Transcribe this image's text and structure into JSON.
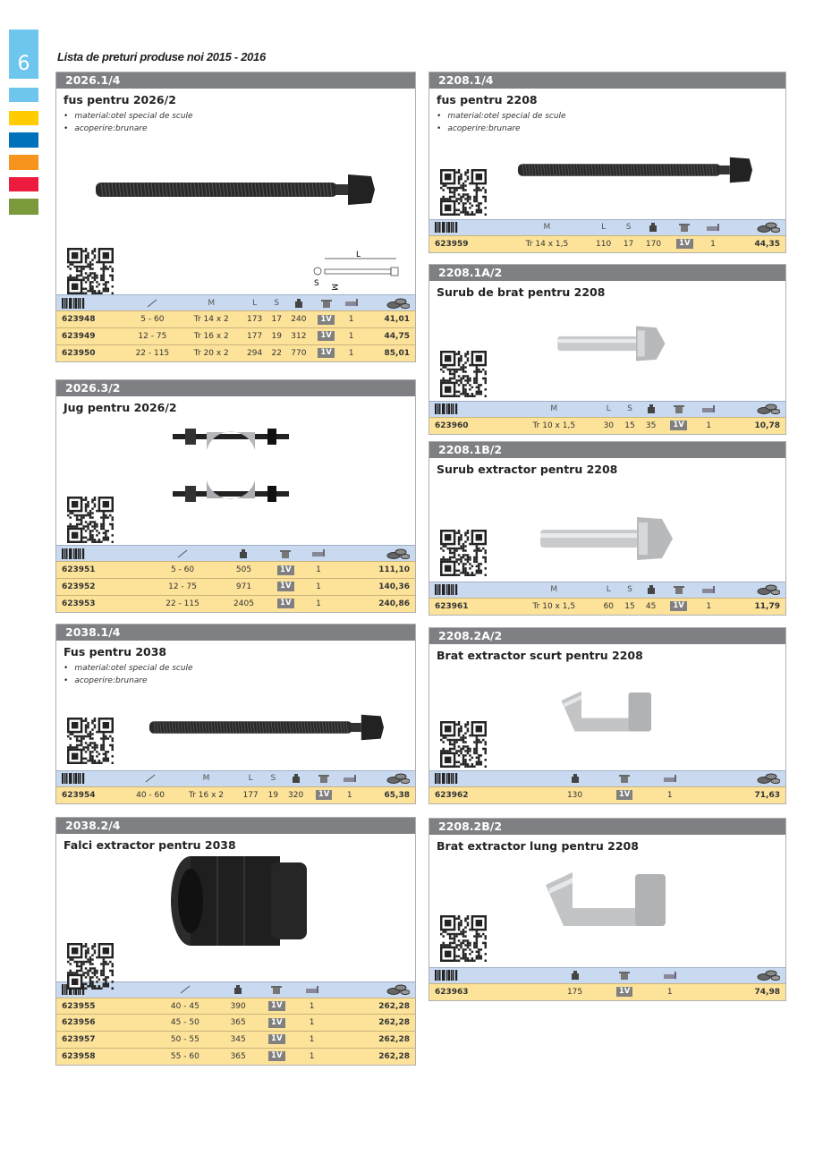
{
  "page": {
    "number": "6",
    "title": "Lista de preturi produse noi 2015 - 2016",
    "tab_colors": [
      "#6ec6ee",
      "#ffcc00",
      "#0072bc",
      "#f7941d",
      "#ed1c3f",
      "#7a9a3c"
    ]
  },
  "column_icons": {
    "barcode": "barcode-icon",
    "range": "span-range-icon",
    "weight": "weight-icon",
    "pack": "package-icon",
    "qty": "quantity-icon",
    "price": "coins-price-icon"
  },
  "column_labels": {
    "M": "M",
    "L": "L",
    "S": "S"
  },
  "pack_badge": "1V",
  "dimension_labels": {
    "L": "L",
    "S": "S",
    "M": "M"
  },
  "cards": [
    {
      "code": "2026.1/4",
      "title": "fus pentru 2026/2",
      "bullets": [
        "material:otel special de scule",
        "acoperire:brunare"
      ],
      "image": "long-bolt",
      "columns": [
        "barcode",
        "range",
        "M",
        "L",
        "S",
        "weight",
        "pack",
        "qty",
        "price"
      ],
      "rows": [
        [
          "623948",
          "5 - 60",
          "Tr 14 x 2",
          "173",
          "17",
          "240",
          "1V",
          "1",
          "41,01"
        ],
        [
          "623949",
          "12 - 75",
          "Tr 16 x 2",
          "177",
          "19",
          "312",
          "1V",
          "1",
          "44,75"
        ],
        [
          "623950",
          "22 - 115",
          "Tr 20 x 2",
          "294",
          "22",
          "770",
          "1V",
          "1",
          "85,01"
        ]
      ]
    },
    {
      "code": "2026.3/2",
      "title": "Jug pentru 2026/2",
      "bullets": [],
      "image": "yoke",
      "columns": [
        "barcode",
        "range",
        "weight",
        "pack",
        "qty",
        "price"
      ],
      "rows": [
        [
          "623951",
          "5 - 60",
          "505",
          "1V",
          "1",
          "111,10"
        ],
        [
          "623952",
          "12 - 75",
          "971",
          "1V",
          "1",
          "140,36"
        ],
        [
          "623953",
          "22 - 115",
          "2405",
          "1V",
          "1",
          "240,86"
        ]
      ]
    },
    {
      "code": "2038.1/4",
      "title": "Fus pentru 2038",
      "bullets": [
        "material:otel special de scule",
        "acoperire:brunare"
      ],
      "image": "long-bolt",
      "columns": [
        "barcode",
        "range",
        "M",
        "L",
        "S",
        "weight",
        "pack",
        "qty",
        "price"
      ],
      "rows": [
        [
          "623954",
          "40 - 60",
          "Tr 16 x 2",
          "177",
          "19",
          "320",
          "1V",
          "1",
          "65,38"
        ]
      ]
    },
    {
      "code": "2038.2/4",
      "title": "Falci extractor pentru 2038",
      "bullets": [],
      "image": "collet",
      "columns": [
        "barcode",
        "range",
        "weight",
        "pack",
        "qty",
        "price"
      ],
      "rows": [
        [
          "623955",
          "40 - 45",
          "390",
          "1V",
          "1",
          "262,28"
        ],
        [
          "623956",
          "45 - 50",
          "365",
          "1V",
          "1",
          "262,28"
        ],
        [
          "623957",
          "50 - 55",
          "345",
          "1V",
          "1",
          "262,28"
        ],
        [
          "623958",
          "55 - 60",
          "365",
          "1V",
          "1",
          "262,28"
        ]
      ]
    },
    {
      "code": "2208.1/4",
      "title": "fus pentru 2208",
      "bullets": [
        "material:otel special de scule",
        "acoperire:brunare"
      ],
      "image": "long-bolt",
      "columns": [
        "barcode",
        "M",
        "L",
        "S",
        "weight",
        "pack",
        "qty",
        "price"
      ],
      "rows": [
        [
          "623959",
          "Tr 14 x 1,5",
          "110",
          "17",
          "170",
          "1V",
          "1",
          "44,35"
        ]
      ]
    },
    {
      "code": "2208.1A/2",
      "title": "Surub de brat pentru 2208",
      "bullets": [],
      "image": "short-bolt",
      "columns": [
        "barcode",
        "M",
        "L",
        "S",
        "weight",
        "pack",
        "qty",
        "price"
      ],
      "rows": [
        [
          "623960",
          "Tr 10 x 1,5",
          "30",
          "15",
          "35",
          "1V",
          "1",
          "10,78"
        ]
      ]
    },
    {
      "code": "2208.1B/2",
      "title": "Surub extractor pentru 2208",
      "bullets": [],
      "image": "short-bolt",
      "columns": [
        "barcode",
        "M",
        "L",
        "S",
        "weight",
        "pack",
        "qty",
        "price"
      ],
      "rows": [
        [
          "623961",
          "Tr 10 x 1,5",
          "60",
          "15",
          "45",
          "1V",
          "1",
          "11,79"
        ]
      ]
    },
    {
      "code": "2208.2A/2",
      "title": "Brat extractor scurt pentru 2208",
      "bullets": [],
      "image": "arm",
      "columns": [
        "barcode",
        "weight",
        "pack",
        "qty",
        "price"
      ],
      "rows": [
        [
          "623962",
          "130",
          "1V",
          "1",
          "71,63"
        ]
      ]
    },
    {
      "code": "2208.2B/2",
      "title": "Brat extractor lung pentru 2208",
      "bullets": [],
      "image": "arm",
      "columns": [
        "barcode",
        "weight",
        "pack",
        "qty",
        "price"
      ],
      "rows": [
        [
          "623963",
          "175",
          "1V",
          "1",
          "74,98"
        ]
      ]
    }
  ]
}
